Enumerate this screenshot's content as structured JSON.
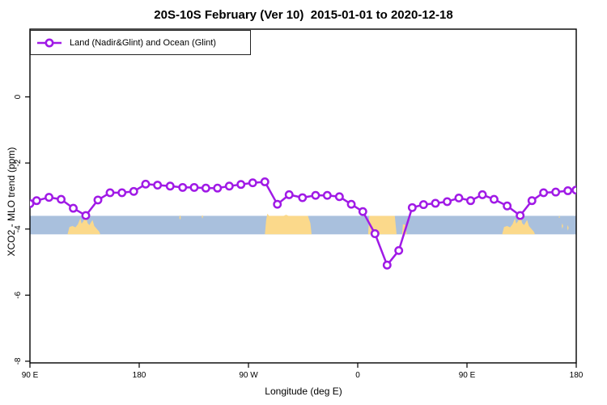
{
  "legend": {
    "label": "Land (Nadir&Glint) and Ocean (Glint)"
  },
  "colors": {
    "line": "#A01AE6",
    "marker_fill": "#FFFFFF",
    "ocean_band": "#A9C0DD",
    "land_band": "#FBD98B",
    "axis": "#000000"
  },
  "chart_data": {
    "type": "line",
    "title": "20S-10S February (Ver 10)  2015-01-01 to 2020-12-18",
    "xlabel": "Longitude (deg E)",
    "ylabel": "XCO2 - MLO trend (ppm)",
    "xlim": [
      90,
      540
    ],
    "ylim": [
      -8.05,
      2.05
    ],
    "grid": false,
    "legend_position": "top-left",
    "xticks": [
      {
        "value": 90,
        "label": "90 E"
      },
      {
        "value": 180,
        "label": "180"
      },
      {
        "value": 270,
        "label": "90 W"
      },
      {
        "value": 360,
        "label": "0"
      },
      {
        "value": 450,
        "label": "90 E"
      },
      {
        "value": 540,
        "label": "180"
      }
    ],
    "yticks": [
      {
        "value": 0,
        "label": "0"
      },
      {
        "value": -2,
        "label": "-2"
      },
      {
        "value": -4,
        "label": "-4"
      },
      {
        "value": -6,
        "label": "-6"
      },
      {
        "value": -8,
        "label": "-8"
      }
    ],
    "series": [
      {
        "name": "Land (Nadir&Glint) and Ocean (Glint)",
        "x": [
          90,
          95.5,
          105.7,
          115.7,
          125.7,
          136,
          146,
          156,
          165.8,
          175.5,
          185.3,
          195.1,
          205.5,
          215.8,
          225.3,
          234.9,
          244.5,
          254.2,
          263.8,
          273.5,
          283.5,
          293.8,
          303.5,
          314.5,
          325.3,
          334.9,
          344.9,
          354.7,
          364.2,
          374.2,
          384.2,
          393.8,
          404.9,
          414.2,
          424,
          433.7,
          443.3,
          453,
          462.7,
          472.3,
          483.1,
          493.8,
          503.5,
          513.1,
          523.1,
          533.1,
          539.8
        ],
        "y": [
          -3.23,
          -3.14,
          -3.04,
          -3.1,
          -3.37,
          -3.59,
          -3.12,
          -2.9,
          -2.9,
          -2.86,
          -2.64,
          -2.67,
          -2.7,
          -2.74,
          -2.74,
          -2.76,
          -2.76,
          -2.7,
          -2.65,
          -2.6,
          -2.57,
          -3.25,
          -2.96,
          -3.05,
          -2.98,
          -2.98,
          -3.02,
          -3.25,
          -3.47,
          -4.14,
          -5.09,
          -4.65,
          -3.35,
          -3.26,
          -3.22,
          -3.17,
          -3.06,
          -3.14,
          -2.96,
          -3.1,
          -3.3,
          -3.59,
          -3.14,
          -2.9,
          -2.88,
          -2.84,
          -2.82
        ]
      }
    ],
    "band": {
      "description": "land/ocean strip along 20S-10S",
      "top": -3.6,
      "bottom": -4.16,
      "land_regions": [
        [
          [
            121,
            0
          ],
          [
            122.5,
            0.4
          ],
          [
            125,
            0.45
          ],
          [
            127.5,
            0.38
          ],
          [
            129.5,
            0.55
          ],
          [
            131.5,
            0.87
          ],
          [
            132.5,
            0.58
          ],
          [
            134,
            0.7
          ],
          [
            136,
            0.96
          ],
          [
            137.5,
            0.6
          ],
          [
            139,
            0.5
          ],
          [
            141.5,
            0.78
          ],
          [
            143,
            0.45
          ],
          [
            145,
            0.3
          ],
          [
            147,
            0.15
          ],
          [
            148,
            0
          ]
        ],
        [
          [
            283.5,
            0
          ],
          [
            284.5,
            0.75
          ],
          [
            285.5,
            1.12
          ],
          [
            287,
            1.0
          ],
          [
            299,
            1.0
          ],
          [
            301,
            1.06
          ],
          [
            303,
            1.0
          ],
          [
            319,
            1.0
          ],
          [
            321,
            0.6
          ],
          [
            322,
            0
          ]
        ],
        [
          [
            368.5,
            0
          ],
          [
            369.5,
            1.0
          ],
          [
            390.5,
            1.0
          ],
          [
            392,
            0
          ]
        ],
        [
          [
            396.5,
            0
          ],
          [
            397.3,
            0.55
          ],
          [
            399.5,
            0.5
          ],
          [
            400.3,
            0
          ]
        ],
        [
          [
            479,
            0
          ],
          [
            480.5,
            0.4
          ],
          [
            483,
            0.45
          ],
          [
            485.5,
            0.38
          ],
          [
            487.5,
            0.55
          ],
          [
            489.5,
            0.87
          ],
          [
            490.5,
            0.58
          ],
          [
            492,
            0.7
          ],
          [
            494,
            0.96
          ],
          [
            495.5,
            0.6
          ],
          [
            497,
            0.5
          ],
          [
            499.5,
            0.78
          ],
          [
            501,
            0.45
          ],
          [
            503,
            0.3
          ],
          [
            505,
            0.15
          ],
          [
            506,
            0
          ]
        ],
        [
          [
            213,
            0.9
          ],
          [
            213.6,
            1.05
          ],
          [
            214.3,
            0.9
          ],
          [
            213.6,
            0.78
          ]
        ],
        [
          [
            231.5,
            0.95
          ],
          [
            232,
            1.05
          ],
          [
            232.6,
            0.95
          ],
          [
            232,
            0.85
          ]
        ],
        [
          [
            525.5,
            0.9
          ],
          [
            526,
            1.03
          ],
          [
            526.6,
            0.9
          ]
        ],
        [
          [
            528,
            0.45
          ],
          [
            528.5,
            0.6
          ],
          [
            529.2,
            0.45
          ],
          [
            528.6,
            0.3
          ]
        ],
        [
          [
            532.5,
            0.35
          ],
          [
            533,
            0.5
          ],
          [
            533.7,
            0.35
          ],
          [
            533.1,
            0.2
          ]
        ]
      ]
    }
  }
}
